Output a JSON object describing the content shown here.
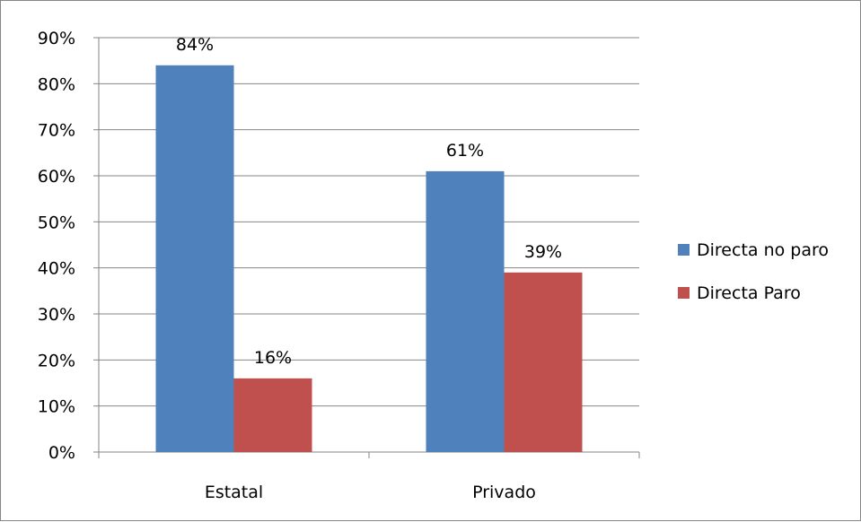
{
  "chart_data": {
    "type": "bar",
    "categories": [
      "Estatal",
      "Privado"
    ],
    "series": [
      {
        "name": "Directa no paro",
        "values": [
          84,
          61
        ],
        "labels": [
          "84%",
          "61%"
        ],
        "color": "#4f81bd"
      },
      {
        "name": "Directa Paro",
        "values": [
          16,
          39
        ],
        "labels": [
          "16%",
          "39%"
        ],
        "color": "#c0504d"
      }
    ],
    "title": "",
    "xlabel": "",
    "ylabel": "",
    "ylim": [
      0,
      90
    ],
    "yticks": [
      "0%",
      "10%",
      "20%",
      "30%",
      "40%",
      "50%",
      "60%",
      "70%",
      "80%",
      "90%"
    ],
    "grid": true,
    "legend": "right"
  }
}
